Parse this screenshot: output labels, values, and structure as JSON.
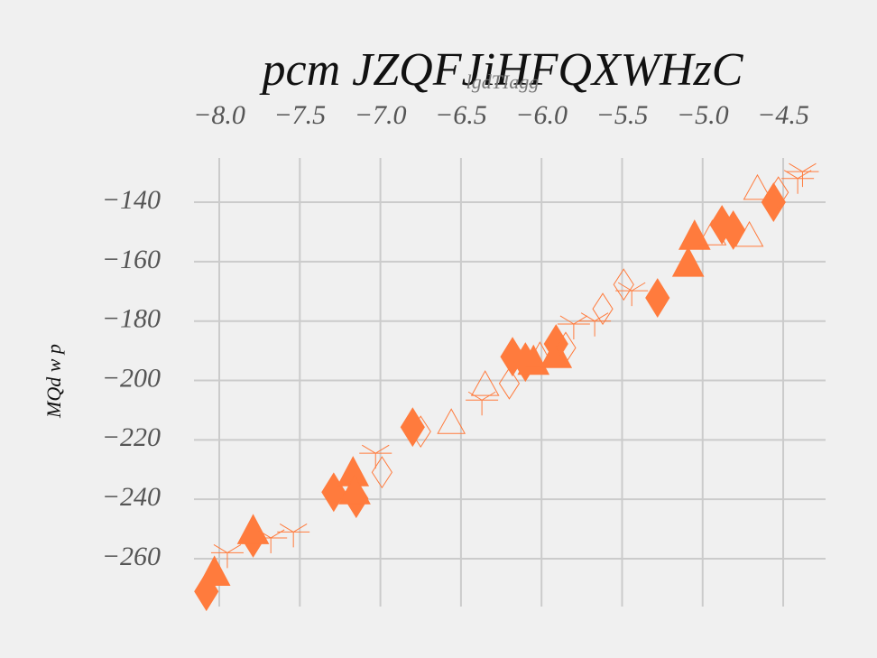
{
  "chart_data": {
    "type": "scatter",
    "title": "pcm JZQFJiHFQXWHzC",
    "x_label": "lgdTIagg",
    "y_label": "MQd w p",
    "xlim": [
      -8.157,
      -4.237
    ],
    "ylim": [
      -276.1,
      -125.1
    ],
    "xticks": [
      {
        "value": -8,
        "label": "−8.0"
      },
      {
        "value": -7.5,
        "label": "−7.5"
      },
      {
        "value": -7,
        "label": "−7.0"
      },
      {
        "value": -6.5,
        "label": "−6.5"
      },
      {
        "value": -6,
        "label": "−6.0"
      },
      {
        "value": -5.5,
        "label": "−5.5"
      },
      {
        "value": -5,
        "label": "−5.0"
      },
      {
        "value": -4.5,
        "label": "−4.5"
      }
    ],
    "yticks": [
      {
        "value": -140,
        "label": "−140"
      },
      {
        "value": -160,
        "label": "−160"
      },
      {
        "value": -180,
        "label": "−180"
      },
      {
        "value": -200,
        "label": "−200"
      },
      {
        "value": -220,
        "label": "−220"
      },
      {
        "value": -240,
        "label": "−240"
      },
      {
        "value": -260,
        "label": "−260"
      }
    ],
    "grid": true,
    "series": [
      {
        "marker": "D",
        "filled": true,
        "color": "#ff7b3d",
        "x": [
          -8.08,
          -7.79,
          -7.29,
          -7.15,
          -6.8,
          -6.18,
          -6.1,
          -5.91,
          -5.28,
          -4.88,
          -4.81,
          -4.56
        ],
        "values": [
          -271,
          -253,
          -237.6,
          -239.7,
          -215.7,
          -192,
          -193.8,
          -187.7,
          -172.2,
          -147.6,
          -149.4,
          -140
        ]
      },
      {
        "marker": "^",
        "filled": true,
        "color": "#ff7b3d",
        "x": [
          -8.03,
          -7.79,
          -7.17,
          -7.16,
          -6.05,
          -5.91,
          -5.09,
          -5.05
        ],
        "values": [
          -265,
          -251,
          -231.5,
          -237.6,
          -194,
          -191.7,
          -161,
          -151.9
        ]
      },
      {
        "marker": "D",
        "filled": false,
        "color": "#ff7b3d",
        "x": [
          -6.99,
          -6.75,
          -6.2,
          -5.62,
          -5.49,
          -5.85,
          -4.53
        ],
        "values": [
          -230.9,
          -217.2,
          -201,
          -175.9,
          -167.7,
          -189,
          -136.7
        ]
      },
      {
        "marker": "^",
        "filled": false,
        "color": "#ff7b3d",
        "x": [
          -6.56,
          -6.35,
          -6.01,
          -4.94,
          -4.71,
          -4.66
        ],
        "values": [
          -214.5,
          -201.7,
          -192,
          -151,
          -151.5,
          -135.7
        ]
      },
      {
        "marker": "1",
        "filled": false,
        "color": "#ff7b3d",
        "x": [
          -7.95,
          -7.68,
          -7.54,
          -7.03,
          -6.37,
          -5.67,
          -5.44,
          -4.41,
          -4.38,
          -5.8
        ],
        "values": [
          -258,
          -253,
          -251,
          -224.5,
          -206.6,
          -180,
          -169.8,
          -132,
          -129.7,
          -181
        ]
      }
    ]
  }
}
